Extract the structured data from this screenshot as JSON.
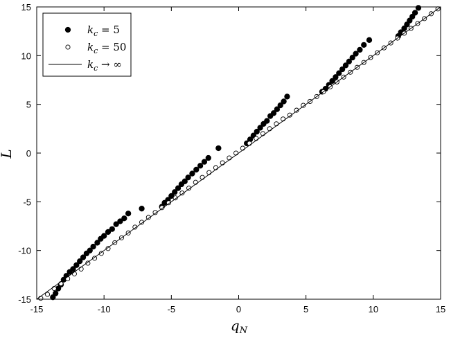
{
  "chart_data": {
    "type": "scatter",
    "xlabel": "q",
    "xlabel_sub": "N",
    "ylabel": "L",
    "xlim": [
      -15,
      15
    ],
    "ylim": [
      -15,
      15
    ],
    "xticks": [
      -15,
      -10,
      -5,
      0,
      5,
      10,
      15
    ],
    "yticks": [
      -15,
      -10,
      -5,
      0,
      5,
      10,
      15
    ],
    "xtick_labels": [
      "-15",
      "-10",
      "-5",
      "0",
      "5",
      "10",
      "15"
    ],
    "ytick_labels": [
      "-15",
      "-10",
      "-5",
      "0",
      "5",
      "10",
      "15"
    ],
    "grid": false,
    "legend_position": "top-left",
    "series": [
      {
        "name": "kc = 5",
        "legend_base": "k",
        "legend_sub": "c",
        "legend_rel": "= 5",
        "marker": "filled-circle",
        "points": [
          [
            -13.8,
            -14.8
          ],
          [
            -13.6,
            -14.4
          ],
          [
            -13.4,
            -13.9
          ],
          [
            -13.2,
            -13.5
          ],
          [
            -13.0,
            -13.0
          ],
          [
            -12.8,
            -12.6
          ],
          [
            -12.55,
            -12.2
          ],
          [
            -12.3,
            -11.9
          ],
          [
            -12.05,
            -11.5
          ],
          [
            -11.8,
            -11.1
          ],
          [
            -11.55,
            -10.7
          ],
          [
            -11.3,
            -10.3
          ],
          [
            -11.05,
            -10.0
          ],
          [
            -10.8,
            -9.6
          ],
          [
            -10.5,
            -9.2
          ],
          [
            -10.25,
            -8.8
          ],
          [
            -10.0,
            -8.5
          ],
          [
            -9.7,
            -8.1
          ],
          [
            -9.4,
            -7.8
          ],
          [
            -9.1,
            -7.3
          ],
          [
            -8.8,
            -7.0
          ],
          [
            -8.5,
            -6.7
          ],
          [
            -8.2,
            -6.2
          ],
          [
            -7.2,
            -5.7
          ],
          [
            -5.7,
            -5.5
          ],
          [
            -5.5,
            -5.1
          ],
          [
            -5.25,
            -4.8
          ],
          [
            -5.0,
            -4.4
          ],
          [
            -4.75,
            -4.0
          ],
          [
            -4.5,
            -3.6
          ],
          [
            -4.25,
            -3.2
          ],
          [
            -4.0,
            -2.9
          ],
          [
            -3.75,
            -2.5
          ],
          [
            -3.45,
            -2.1
          ],
          [
            -3.15,
            -1.7
          ],
          [
            -2.85,
            -1.3
          ],
          [
            -2.55,
            -0.9
          ],
          [
            -2.25,
            -0.5
          ],
          [
            -1.5,
            0.5
          ],
          [
            0.6,
            1.0
          ],
          [
            0.85,
            1.4
          ],
          [
            1.1,
            1.8
          ],
          [
            1.35,
            2.2
          ],
          [
            1.6,
            2.6
          ],
          [
            1.85,
            3.0
          ],
          [
            2.1,
            3.3
          ],
          [
            2.35,
            3.8
          ],
          [
            2.6,
            4.1
          ],
          [
            2.85,
            4.5
          ],
          [
            3.1,
            4.9
          ],
          [
            3.35,
            5.3
          ],
          [
            3.6,
            5.8
          ],
          [
            6.2,
            6.3
          ],
          [
            6.45,
            6.6
          ],
          [
            6.7,
            7.0
          ],
          [
            6.95,
            7.4
          ],
          [
            7.2,
            7.8
          ],
          [
            7.45,
            8.2
          ],
          [
            7.7,
            8.6
          ],
          [
            7.95,
            9.0
          ],
          [
            8.2,
            9.4
          ],
          [
            8.45,
            9.8
          ],
          [
            8.7,
            10.2
          ],
          [
            9.0,
            10.6
          ],
          [
            9.3,
            11.1
          ],
          [
            9.7,
            11.6
          ],
          [
            11.85,
            12.0
          ],
          [
            12.05,
            12.4
          ],
          [
            12.3,
            12.8
          ],
          [
            12.5,
            13.2
          ],
          [
            12.7,
            13.6
          ],
          [
            12.9,
            14.0
          ],
          [
            13.1,
            14.4
          ],
          [
            13.35,
            14.9
          ]
        ]
      },
      {
        "name": "kc = 50",
        "legend_base": "k",
        "legend_sub": "c",
        "legend_rel": "= 50",
        "marker": "open-circle",
        "points": [
          [
            -14.7,
            -14.9
          ],
          [
            -14.2,
            -14.5
          ],
          [
            -13.7,
            -13.9
          ],
          [
            -13.2,
            -13.4
          ],
          [
            -12.7,
            -12.9
          ],
          [
            -12.2,
            -12.4
          ],
          [
            -11.7,
            -11.9
          ],
          [
            -11.2,
            -11.3
          ],
          [
            -10.7,
            -10.8
          ],
          [
            -10.2,
            -10.3
          ],
          [
            -9.7,
            -9.8
          ],
          [
            -9.2,
            -9.2
          ],
          [
            -8.7,
            -8.7
          ],
          [
            -8.2,
            -8.2
          ],
          [
            -7.7,
            -7.6
          ],
          [
            -7.2,
            -7.1
          ],
          [
            -6.7,
            -6.6
          ],
          [
            -6.2,
            -6.1
          ],
          [
            -5.7,
            -5.6
          ],
          [
            -5.2,
            -5.1
          ],
          [
            -4.7,
            -4.6
          ],
          [
            -4.2,
            -4.1
          ],
          [
            -3.7,
            -3.6
          ],
          [
            -3.2,
            -3.0
          ],
          [
            -2.7,
            -2.5
          ],
          [
            -2.2,
            -2.0
          ],
          [
            -1.7,
            -1.5
          ],
          [
            -1.2,
            -1.0
          ],
          [
            -0.7,
            -0.5
          ],
          [
            -0.2,
            0.0
          ],
          [
            0.3,
            0.5
          ],
          [
            0.8,
            1.0
          ],
          [
            1.3,
            1.5
          ],
          [
            1.8,
            2.0
          ],
          [
            2.3,
            2.5
          ],
          [
            2.8,
            3.0
          ],
          [
            3.3,
            3.5
          ],
          [
            3.8,
            3.9
          ],
          [
            4.3,
            4.4
          ],
          [
            4.8,
            4.9
          ],
          [
            5.3,
            5.3
          ],
          [
            5.8,
            5.8
          ],
          [
            6.3,
            6.3
          ],
          [
            6.8,
            6.8
          ],
          [
            7.3,
            7.3
          ],
          [
            7.8,
            7.8
          ],
          [
            8.3,
            8.3
          ],
          [
            8.8,
            8.8
          ],
          [
            9.3,
            9.3
          ],
          [
            9.8,
            9.8
          ],
          [
            10.3,
            10.3
          ],
          [
            10.8,
            10.8
          ],
          [
            11.3,
            11.3
          ],
          [
            11.8,
            11.8
          ],
          [
            12.3,
            12.3
          ],
          [
            12.8,
            12.8
          ],
          [
            13.3,
            13.3
          ],
          [
            13.8,
            13.8
          ],
          [
            14.3,
            14.3
          ],
          [
            14.8,
            14.8
          ]
        ]
      },
      {
        "name": "kc → ∞",
        "legend_base": "k",
        "legend_sub": "c",
        "legend_rel": "→ ∞",
        "marker": "line",
        "points": [
          [
            -15,
            -15
          ],
          [
            15,
            15
          ]
        ]
      }
    ]
  }
}
